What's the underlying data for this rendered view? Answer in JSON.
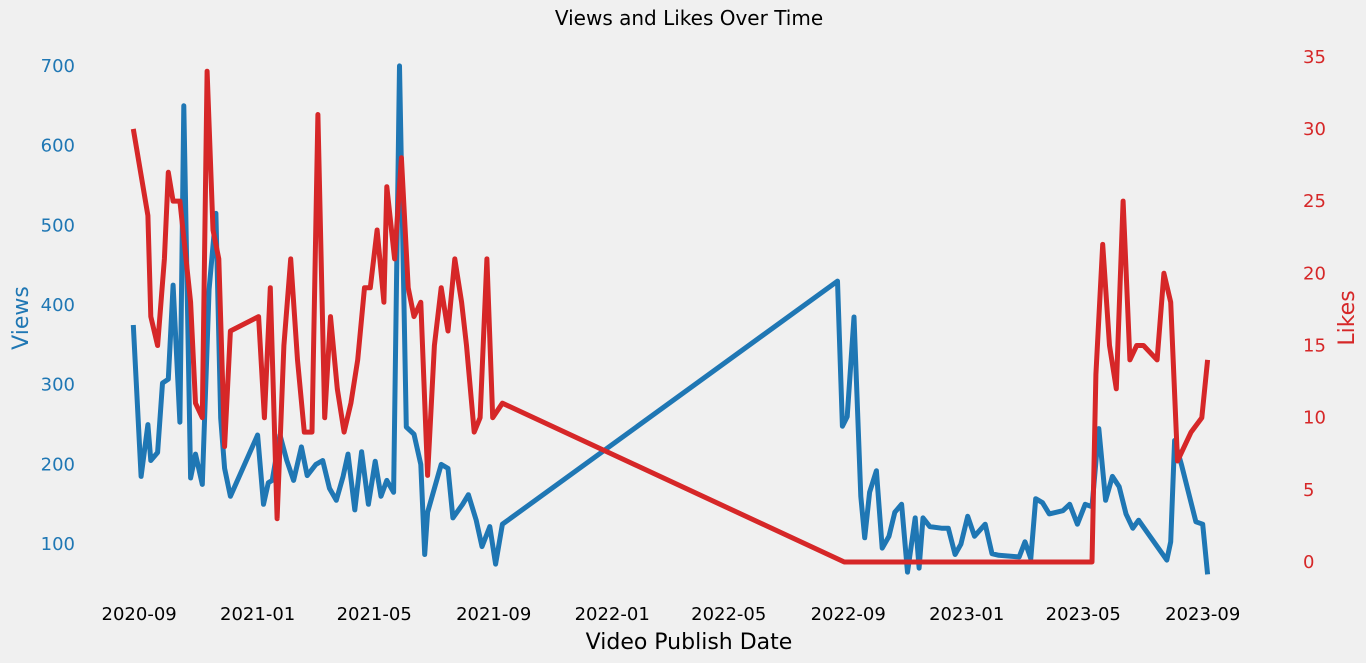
{
  "colors": {
    "background": "#f0f0f0",
    "views": "#1f77b4",
    "likes": "#d62728",
    "text": "#000000"
  },
  "chart_data": {
    "type": "line",
    "title": "Views and Likes Over Time",
    "xlabel": "Video Publish Date",
    "ylabel_left": "Views",
    "ylabel_right": "Likes",
    "x_ticks": [
      "2020-09",
      "2021-01",
      "2021-05",
      "2021-09",
      "2022-01",
      "2022-05",
      "2022-09",
      "2023-01",
      "2023-05",
      "2023-09"
    ],
    "y_left_ticks": [
      100,
      200,
      300,
      400,
      500,
      600,
      700
    ],
    "y_right_ticks": [
      0,
      5,
      10,
      15,
      20,
      25,
      30,
      35
    ],
    "xlim": [
      "2020-08-02",
      "2023-11-01"
    ],
    "ylim_left": [
      45,
      735
    ],
    "ylim_right": [
      -1.8,
      36.3
    ],
    "grid": false,
    "series": [
      {
        "name": "Views",
        "axis": "left",
        "points": [
          [
            "2020-08-26",
            375
          ],
          [
            "2020-09-03",
            185
          ],
          [
            "2020-09-10",
            250
          ],
          [
            "2020-09-13",
            205
          ],
          [
            "2020-09-20",
            215
          ],
          [
            "2020-09-25",
            302
          ],
          [
            "2020-10-01",
            307
          ],
          [
            "2020-10-06",
            425
          ],
          [
            "2020-10-13",
            253
          ],
          [
            "2020-10-17",
            650
          ],
          [
            "2020-10-24",
            183
          ],
          [
            "2020-10-29",
            213
          ],
          [
            "2020-11-05",
            175
          ],
          [
            "2020-11-12",
            420
          ],
          [
            "2020-11-19",
            515
          ],
          [
            "2020-11-24",
            258
          ],
          [
            "2020-11-28",
            195
          ],
          [
            "2020-12-04",
            160
          ],
          [
            "2021-01-01",
            237
          ],
          [
            "2021-01-07",
            150
          ],
          [
            "2021-01-12",
            177
          ],
          [
            "2021-01-16",
            180
          ],
          [
            "2021-01-24",
            237
          ],
          [
            "2021-01-31",
            205
          ],
          [
            "2021-02-07",
            180
          ],
          [
            "2021-02-15",
            222
          ],
          [
            "2021-02-21",
            186
          ],
          [
            "2021-03-02",
            200
          ],
          [
            "2021-03-09",
            205
          ],
          [
            "2021-03-16",
            170
          ],
          [
            "2021-03-23",
            155
          ],
          [
            "2021-03-30",
            185
          ],
          [
            "2021-04-04",
            213
          ],
          [
            "2021-04-11",
            143
          ],
          [
            "2021-04-18",
            216
          ],
          [
            "2021-04-25",
            150
          ],
          [
            "2021-05-02",
            204
          ],
          [
            "2021-05-08",
            160
          ],
          [
            "2021-05-14",
            180
          ],
          [
            "2021-05-21",
            165
          ],
          [
            "2021-05-27",
            700
          ],
          [
            "2021-06-03",
            247
          ],
          [
            "2021-06-11",
            238
          ],
          [
            "2021-06-18",
            200
          ],
          [
            "2021-06-22",
            87
          ],
          [
            "2021-06-25",
            140
          ],
          [
            "2021-07-09",
            200
          ],
          [
            "2021-07-16",
            195
          ],
          [
            "2021-07-21",
            133
          ],
          [
            "2021-07-31",
            150
          ],
          [
            "2021-08-06",
            162
          ],
          [
            "2021-08-14",
            130
          ],
          [
            "2021-08-20",
            97
          ],
          [
            "2021-08-28",
            122
          ],
          [
            "2021-09-03",
            75
          ],
          [
            "2021-09-10",
            125
          ],
          [
            "2022-08-21",
            430
          ],
          [
            "2022-08-26",
            248
          ],
          [
            "2022-08-31",
            260
          ],
          [
            "2022-09-07",
            385
          ],
          [
            "2022-09-14",
            160
          ],
          [
            "2022-09-18",
            108
          ],
          [
            "2022-09-23",
            165
          ],
          [
            "2022-09-30",
            192
          ],
          [
            "2022-10-06",
            95
          ],
          [
            "2022-10-13",
            110
          ],
          [
            "2022-10-19",
            140
          ],
          [
            "2022-10-26",
            150
          ],
          [
            "2022-11-01",
            65
          ],
          [
            "2022-11-09",
            133
          ],
          [
            "2022-11-13",
            70
          ],
          [
            "2022-11-17",
            133
          ],
          [
            "2022-11-24",
            122
          ],
          [
            "2022-12-06",
            120
          ],
          [
            "2022-12-13",
            120
          ],
          [
            "2022-12-20",
            87
          ],
          [
            "2022-12-26",
            100
          ],
          [
            "2023-01-02",
            135
          ],
          [
            "2023-01-09",
            110
          ],
          [
            "2023-01-20",
            125
          ],
          [
            "2023-01-27",
            88
          ],
          [
            "2023-02-03",
            86
          ],
          [
            "2023-02-24",
            84
          ],
          [
            "2023-03-02",
            103
          ],
          [
            "2023-03-08",
            82
          ],
          [
            "2023-03-13",
            157
          ],
          [
            "2023-03-20",
            152
          ],
          [
            "2023-03-27",
            138
          ],
          [
            "2023-04-10",
            142
          ],
          [
            "2023-04-17",
            150
          ],
          [
            "2023-04-25",
            125
          ],
          [
            "2023-05-03",
            150
          ],
          [
            "2023-05-10",
            147
          ],
          [
            "2023-05-17",
            245
          ],
          [
            "2023-05-24",
            155
          ],
          [
            "2023-05-31",
            185
          ],
          [
            "2023-06-07",
            172
          ],
          [
            "2023-06-14",
            138
          ],
          [
            "2023-06-21",
            120
          ],
          [
            "2023-06-27",
            130
          ],
          [
            "2023-07-26",
            80
          ],
          [
            "2023-07-30",
            103
          ],
          [
            "2023-08-03",
            230
          ],
          [
            "2023-08-10",
            200
          ],
          [
            "2023-08-25",
            128
          ],
          [
            "2023-09-01",
            125
          ],
          [
            "2023-09-06",
            62
          ]
        ]
      },
      {
        "name": "Likes",
        "axis": "right",
        "points": [
          [
            "2020-08-26",
            30
          ],
          [
            "2020-09-10",
            24
          ],
          [
            "2020-09-13",
            17
          ],
          [
            "2020-09-20",
            15
          ],
          [
            "2020-09-27",
            21
          ],
          [
            "2020-10-01",
            27
          ],
          [
            "2020-10-06",
            25
          ],
          [
            "2020-10-13",
            25
          ],
          [
            "2020-10-24",
            18
          ],
          [
            "2020-10-29",
            11
          ],
          [
            "2020-11-05",
            10
          ],
          [
            "2020-11-10",
            34
          ],
          [
            "2020-11-16",
            23
          ],
          [
            "2020-11-22",
            21
          ],
          [
            "2020-11-28",
            8
          ],
          [
            "2020-12-04",
            16
          ],
          [
            "2021-01-02",
            17
          ],
          [
            "2021-01-08",
            10
          ],
          [
            "2021-01-14",
            19
          ],
          [
            "2021-01-21",
            3
          ],
          [
            "2021-01-28",
            15
          ],
          [
            "2021-02-04",
            21
          ],
          [
            "2021-02-11",
            14
          ],
          [
            "2021-02-18",
            9
          ],
          [
            "2021-02-26",
            9
          ],
          [
            "2021-03-04",
            31
          ],
          [
            "2021-03-11",
            10
          ],
          [
            "2021-03-17",
            17
          ],
          [
            "2021-03-24",
            12
          ],
          [
            "2021-03-31",
            9
          ],
          [
            "2021-04-07",
            11
          ],
          [
            "2021-04-14",
            14
          ],
          [
            "2021-04-21",
            19
          ],
          [
            "2021-04-27",
            19
          ],
          [
            "2021-05-04",
            23
          ],
          [
            "2021-05-11",
            18
          ],
          [
            "2021-05-14",
            26
          ],
          [
            "2021-05-22",
            21
          ],
          [
            "2021-05-29",
            28
          ],
          [
            "2021-06-05",
            19
          ],
          [
            "2021-06-11",
            17
          ],
          [
            "2021-06-18",
            18
          ],
          [
            "2021-06-25",
            6
          ],
          [
            "2021-07-02",
            15
          ],
          [
            "2021-07-09",
            19
          ],
          [
            "2021-07-16",
            16
          ],
          [
            "2021-07-23",
            21
          ],
          [
            "2021-07-30",
            18
          ],
          [
            "2021-08-04",
            15
          ],
          [
            "2021-08-12",
            9
          ],
          [
            "2021-08-18",
            10
          ],
          [
            "2021-08-25",
            21
          ],
          [
            "2021-08-31",
            10
          ],
          [
            "2021-09-10",
            11
          ],
          [
            "2022-08-28",
            0
          ],
          [
            "2023-05-10",
            0
          ],
          [
            "2023-05-14",
            13
          ],
          [
            "2023-05-21",
            22
          ],
          [
            "2023-05-28",
            15
          ],
          [
            "2023-06-04",
            12
          ],
          [
            "2023-06-11",
            25
          ],
          [
            "2023-06-18",
            14
          ],
          [
            "2023-06-25",
            15
          ],
          [
            "2023-07-02",
            15
          ],
          [
            "2023-07-16",
            14
          ],
          [
            "2023-07-23",
            20
          ],
          [
            "2023-07-30",
            18
          ],
          [
            "2023-08-06",
            7
          ],
          [
            "2023-08-20",
            9
          ],
          [
            "2023-08-31",
            10
          ],
          [
            "2023-09-06",
            14
          ]
        ]
      }
    ]
  }
}
